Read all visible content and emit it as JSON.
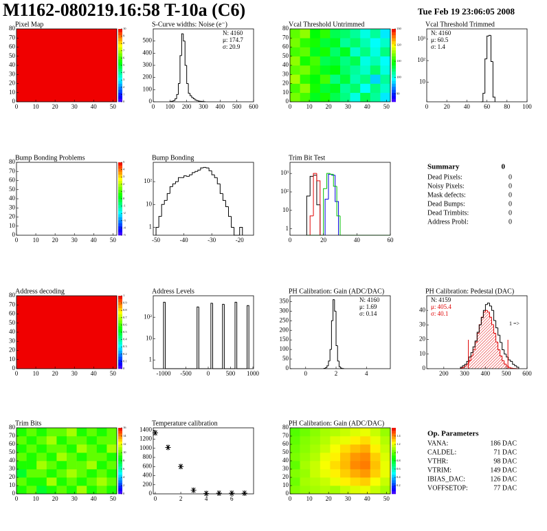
{
  "header": {
    "title": "M1162-080219.16:58 T-10a (C6)",
    "date": "Tue Feb 19 23:06:05 2008"
  },
  "chart_data": [
    {
      "type": "heatmap",
      "title": "Pixel Map",
      "xlim": [
        0,
        52
      ],
      "xticks": [
        0,
        10,
        20,
        30,
        40,
        50
      ],
      "ylim": [
        0,
        80
      ],
      "yticks": [
        0,
        10,
        20,
        30,
        40,
        50,
        60,
        70,
        80
      ],
      "zlim": [
        0,
        10
      ],
      "zticks": [
        0,
        1,
        2,
        3,
        4,
        5,
        6,
        7,
        8,
        9,
        10
      ],
      "z": [
        [
          10
        ]
      ]
    },
    {
      "type": "histogram",
      "title": "S-Curve widths: Noise (e⁻)",
      "xlim": [
        0,
        600
      ],
      "xticks": [
        0,
        100,
        200,
        300,
        400,
        500,
        600
      ],
      "ylim": [
        0,
        600
      ],
      "yticks": [
        0,
        100,
        200,
        300,
        400,
        500
      ],
      "bins": [
        100,
        110,
        120,
        130,
        140,
        150,
        160,
        170,
        180,
        190,
        200,
        210,
        220,
        230,
        240,
        250,
        260,
        270,
        280,
        290,
        300,
        310
      ],
      "values": [
        2,
        5,
        10,
        25,
        60,
        150,
        380,
        560,
        500,
        300,
        150,
        70,
        50,
        35,
        25,
        15,
        10,
        6,
        4,
        2,
        1
      ],
      "color": "#000000",
      "stats": [
        "N: 4160",
        "μ: 174.7",
        "σ: 20.9"
      ],
      "stats_corner": "right"
    },
    {
      "type": "heatmap",
      "title": "Vcal Threshold Untrimmed",
      "xlim": [
        0,
        52
      ],
      "xticks": [
        0,
        10,
        20,
        30,
        40,
        50
      ],
      "ylim": [
        0,
        80
      ],
      "yticks": [
        0,
        10,
        20,
        30,
        40,
        50,
        60,
        70,
        80
      ],
      "zlim": [
        85,
        130
      ],
      "zticks": [
        90,
        100,
        110,
        120,
        130
      ],
      "z": [
        [
          114,
          112,
          108,
          110,
          106,
          104,
          100,
          106,
          103,
          98
        ],
        [
          112,
          115,
          110,
          107,
          108,
          103,
          105,
          99,
          104,
          101
        ],
        [
          116,
          111,
          109,
          112,
          104,
          107,
          102,
          104,
          97,
          103
        ],
        [
          113,
          114,
          111,
          108,
          109,
          105,
          103,
          101,
          105,
          100
        ],
        [
          115,
          110,
          112,
          106,
          107,
          104,
          106,
          100,
          102,
          99
        ],
        [
          112,
          113,
          108,
          110,
          105,
          108,
          101,
          104,
          100,
          104
        ],
        [
          114,
          111,
          110,
          107,
          108,
          103,
          105,
          102,
          99,
          101
        ],
        [
          113,
          115,
          109,
          111,
          106,
          105,
          103,
          100,
          103,
          98
        ]
      ]
    },
    {
      "type": "histogram",
      "title": "Vcal Threshold Trimmed",
      "log": true,
      "xlim": [
        0,
        100
      ],
      "xticks": [
        0,
        20,
        40,
        60,
        80,
        100
      ],
      "ylim": [
        1.2,
        3000
      ],
      "yticks": [
        10,
        {
          "value": 100,
          "label": "10²"
        },
        {
          "value": 1000,
          "label": "10³"
        }
      ],
      "bins": [
        54,
        56,
        58,
        60,
        62,
        64,
        66,
        68
      ],
      "values": [
        1,
        3,
        120,
        1400,
        1500,
        90,
        2
      ],
      "color": "#000000",
      "stats": [
        "N: 4160",
        "μ: 60.5",
        "σ:  1.4"
      ],
      "stats_corner": "left"
    },
    {
      "type": "heatmap",
      "title": "Bump Bonding Problems",
      "xlim": [
        0,
        52
      ],
      "xticks": [
        0,
        10,
        20,
        30,
        40,
        50
      ],
      "ylim": [
        0,
        80
      ],
      "yticks": [
        0,
        10,
        20,
        30,
        40,
        50,
        60,
        70,
        80
      ],
      "zlim": [
        -5,
        5
      ],
      "zticks": [
        -5,
        -4,
        -3,
        -2,
        -1,
        0,
        1,
        2,
        3,
        4,
        5
      ],
      "z": []
    },
    {
      "type": "histogram",
      "title": "Bump Bonding",
      "log": true,
      "xlim": [
        -51,
        -15
      ],
      "xticks": [
        -50,
        -40,
        -30,
        -20
      ],
      "ylim": [
        0.45,
        700
      ],
      "yticks": [
        1,
        10,
        {
          "value": 100,
          "label": "10²"
        }
      ],
      "bins": [
        -50,
        -49,
        -48,
        -47,
        -46,
        -45,
        -44,
        -43,
        -42,
        -41,
        -40,
        -39,
        -38,
        -37,
        -36,
        -35,
        -34,
        -33,
        -32,
        -31,
        -30,
        -29,
        -28,
        -27,
        -26,
        -25,
        -24,
        -23,
        -22,
        -21,
        -20,
        -19
      ],
      "values": [
        1,
        3,
        10,
        15,
        30,
        60,
        80,
        100,
        150,
        150,
        180,
        170,
        200,
        250,
        280,
        320,
        400,
        420,
        400,
        300,
        200,
        150,
        80,
        30,
        15,
        8,
        3,
        1,
        0,
        0,
        1
      ],
      "color": "#000000"
    },
    {
      "type": "histogram",
      "title": "Trim Bit Test",
      "log": true,
      "xlim": [
        0,
        60
      ],
      "xticks": [
        0,
        20,
        40,
        60
      ],
      "ylim": [
        0.45,
        4000
      ],
      "yticks": [
        1,
        10,
        {
          "value": 100,
          "label": "10²"
        },
        {
          "value": 1000,
          "label": "10³"
        }
      ],
      "series": [
        {
          "color": "#000000",
          "bins": [
            10,
            12,
            14,
            16,
            18
          ],
          "values": [
            60,
            700,
            800,
            20
          ]
        },
        {
          "color": "#e00000",
          "bins": [
            12,
            14,
            16,
            18
          ],
          "values": [
            5,
            1000,
            400
          ]
        },
        {
          "color": "#0000e0",
          "bins": [
            21,
            23,
            25,
            27,
            29
          ],
          "values": [
            40,
            900,
            800,
            30
          ]
        },
        {
          "color": "#00c000",
          "bins": [
            10,
            20,
            22,
            24,
            26,
            28,
            30,
            60
          ],
          "values": [
            0,
            150,
            1000,
            900,
            200,
            5,
            0
          ]
        }
      ]
    },
    {
      "type": "heatmap",
      "title": "Address decoding",
      "xlim": [
        0,
        52
      ],
      "xticks": [
        0,
        10,
        20,
        30,
        40,
        50
      ],
      "ylim": [
        0,
        80
      ],
      "yticks": [
        0,
        10,
        20,
        30,
        40,
        50,
        60,
        70,
        80
      ],
      "zlim": [
        0,
        1
      ],
      "zticks": [
        0,
        0.1,
        0.2,
        0.3,
        0.4,
        0.5,
        0.6,
        0.7,
        0.8,
        0.9,
        1
      ],
      "z": [
        [
          1
        ]
      ]
    },
    {
      "type": "histogram",
      "title": "Address Levels",
      "log": true,
      "xlim": [
        -1230,
        1015
      ],
      "xticks": [
        -1000,
        -500,
        0,
        500,
        1000
      ],
      "ylim": [
        0.4,
        1000
      ],
      "yticks": [
        1,
        10,
        {
          "value": 100,
          "label": "10²"
        }
      ],
      "bins": [
        -1000,
        -960,
        -250,
        -210,
        60,
        100,
        320,
        360,
        600,
        640,
        870,
        910
      ],
      "values": [
        500,
        0,
        300,
        0,
        450,
        0,
        400,
        0,
        500,
        0,
        350
      ],
      "color": "#000000"
    },
    {
      "type": "histogram",
      "title": "PH Calibration: Gain (ADC/DAC)",
      "xlim": [
        -1.03,
        5.57
      ],
      "xticks": [
        0,
        2,
        4
      ],
      "ylim": [
        0,
        380
      ],
      "yticks": [
        0,
        50,
        100,
        150,
        200,
        250,
        300,
        350
      ],
      "bins": [
        1.2,
        1.3,
        1.4,
        1.5,
        1.6,
        1.7,
        1.8,
        1.9,
        2.0,
        2.1,
        2.2,
        2.3,
        2.4,
        2.5
      ],
      "values": [
        2,
        5,
        15,
        40,
        100,
        250,
        360,
        300,
        120,
        40,
        10,
        3,
        1
      ],
      "color": "#000000",
      "stats": [
        "N: 4160",
        "μ: 1.69",
        "σ: 0.14"
      ],
      "stats_corner": "right"
    },
    {
      "type": "histogram",
      "title": "PH Calibration: Pedestal (DAC)",
      "xlim": [
        118,
        600
      ],
      "xticks": [
        200,
        300,
        400,
        500,
        600
      ],
      "ylim": [
        0,
        50
      ],
      "yticks": [
        0,
        10,
        20,
        30,
        40
      ],
      "series": [
        {
          "color": "#e00000",
          "fill": "hatch",
          "bins": [
            280,
            290,
            300,
            310,
            320,
            330,
            340,
            350,
            360,
            370,
            380,
            390,
            400,
            410,
            420,
            430,
            440,
            450,
            460,
            470,
            480,
            490,
            500,
            510,
            520,
            530,
            540,
            550,
            560
          ],
          "values": [
            0.4,
            0.9,
            1.8,
            3.2,
            5.4,
            8.7,
            13,
            18.3,
            24.3,
            30.2,
            35.3,
            38.8,
            40,
            38.8,
            35.3,
            30.2,
            24.3,
            18.3,
            13,
            8.7,
            5.4,
            3.2,
            1.8,
            0.9,
            0.4,
            0.2,
            0.1,
            0
          ]
        },
        {
          "color": "#000000",
          "bins": [
            280,
            290,
            300,
            310,
            320,
            330,
            340,
            350,
            360,
            370,
            380,
            390,
            400,
            410,
            420,
            430,
            440,
            450,
            460,
            470,
            480,
            490,
            500,
            510,
            520,
            530,
            540,
            550,
            560
          ],
          "values": [
            1,
            2,
            3,
            5,
            8,
            11,
            15,
            19,
            25,
            30,
            35,
            40,
            44,
            45,
            43,
            40,
            33,
            28,
            23,
            18,
            13,
            10,
            8,
            6,
            5,
            3,
            2,
            1
          ]
        }
      ],
      "cut_lines": [
        318,
        508
      ],
      "cut_color": "#e00000",
      "annotation": "1 =>",
      "stats": [
        "N: 4159",
        "μ: 405.4",
        "σ: 40.1"
      ],
      "stats_colors": [
        "#000000",
        "#e00000",
        "#e00000"
      ],
      "stats_corner": "left"
    },
    {
      "type": "heatmap",
      "title": "Trim Bits",
      "xlim": [
        0,
        52
      ],
      "xticks": [
        0,
        10,
        20,
        30,
        40,
        50
      ],
      "ylim": [
        0,
        80
      ],
      "yticks": [
        0,
        10,
        20,
        30,
        40,
        50,
        60,
        70,
        80
      ],
      "zlim": [
        0,
        16
      ],
      "zticks": [
        0,
        2,
        4,
        6,
        8,
        10,
        12,
        14,
        16
      ],
      "z": [
        [
          9,
          10,
          8,
          9,
          10,
          9,
          11,
          9,
          10,
          9
        ],
        [
          10,
          9,
          9,
          11,
          9,
          10,
          9,
          10,
          11,
          10
        ],
        [
          8,
          10,
          10,
          9,
          10,
          11,
          10,
          9,
          10,
          9
        ],
        [
          9,
          9,
          11,
          10,
          9,
          10,
          10,
          11,
          9,
          10
        ],
        [
          10,
          9,
          10,
          9,
          11,
          10,
          9,
          10,
          10,
          9
        ],
        [
          9,
          10,
          9,
          10,
          10,
          9,
          11,
          10,
          9,
          11
        ],
        [
          10,
          9,
          10,
          11,
          9,
          10,
          10,
          9,
          10,
          10
        ],
        [
          9,
          10,
          9,
          10,
          10,
          11,
          9,
          10,
          9,
          10
        ]
      ]
    },
    {
      "type": "scatter",
      "title": "Temperature calibration",
      "xlim": [
        -0.16,
        7.71
      ],
      "xticks": [
        0,
        2,
        4,
        6
      ],
      "ylim": [
        0,
        1450
      ],
      "yticks": [
        0,
        200,
        400,
        600,
        800,
        1000,
        1200,
        1400
      ],
      "x": [
        0,
        1,
        2,
        3,
        4,
        5,
        6,
        7
      ],
      "values": [
        1340,
        1020,
        600,
        80,
        10,
        15,
        15,
        15
      ],
      "color": "#000000"
    },
    {
      "type": "heatmap",
      "title": "PH Calibration: Gain (ADC/DAC)",
      "xlim": [
        0,
        52
      ],
      "xticks": [
        0,
        10,
        20,
        30,
        40,
        50
      ],
      "ylim": [
        0,
        80
      ],
      "yticks": [
        0,
        10,
        20,
        30,
        40,
        50,
        60,
        70,
        80
      ],
      "zlim": [
        0,
        1.6
      ],
      "zticks": [
        0.2,
        0.4,
        0.6,
        0.8,
        1,
        1.2,
        1.4
      ],
      "z": [
        [
          1.05,
          1.08,
          1.1,
          1.12,
          1.1,
          1.15,
          1.18,
          1.2,
          1.15,
          1.1
        ],
        [
          1.02,
          1.1,
          1.12,
          1.15,
          1.2,
          1.25,
          1.28,
          1.3,
          1.22,
          1.15
        ],
        [
          1.05,
          1.08,
          1.15,
          1.2,
          1.25,
          1.3,
          1.35,
          1.38,
          1.3,
          1.2
        ],
        [
          1.0,
          1.1,
          1.15,
          1.22,
          1.28,
          1.33,
          1.4,
          1.42,
          1.32,
          1.2
        ],
        [
          1.04,
          1.08,
          1.12,
          1.2,
          1.25,
          1.32,
          1.38,
          1.4,
          1.3,
          1.18
        ],
        [
          1.02,
          1.06,
          1.1,
          1.15,
          1.22,
          1.28,
          1.32,
          1.35,
          1.25,
          1.15
        ],
        [
          1.0,
          1.05,
          1.08,
          1.12,
          1.18,
          1.2,
          1.25,
          1.28,
          1.2,
          1.12
        ],
        [
          0.98,
          1.02,
          1.06,
          1.1,
          1.12,
          1.15,
          1.18,
          1.2,
          1.15,
          1.08
        ]
      ]
    }
  ],
  "summary": {
    "title": "Summary",
    "value": 0,
    "rows": [
      [
        "Dead Pixels:",
        0
      ],
      [
        "Noisy Pixels:",
        0
      ],
      [
        "Mask defects:",
        0
      ],
      [
        "Dead Bumps:",
        0
      ],
      [
        "Dead Trimbits:",
        0
      ],
      [
        "Address Probl:",
        0
      ]
    ]
  },
  "op_parameters": {
    "title": "Op. Parameters",
    "rows": [
      [
        "VANA:",
        "186 DAC"
      ],
      [
        "CALDEL:",
        "71 DAC"
      ],
      [
        "VTHR:",
        "98 DAC"
      ],
      [
        "VTRIM:",
        "149 DAC"
      ],
      [
        "IBIAS_DAC:",
        "126 DAC"
      ],
      [
        "VOFFSETOP:",
        "77 DAC"
      ]
    ]
  }
}
